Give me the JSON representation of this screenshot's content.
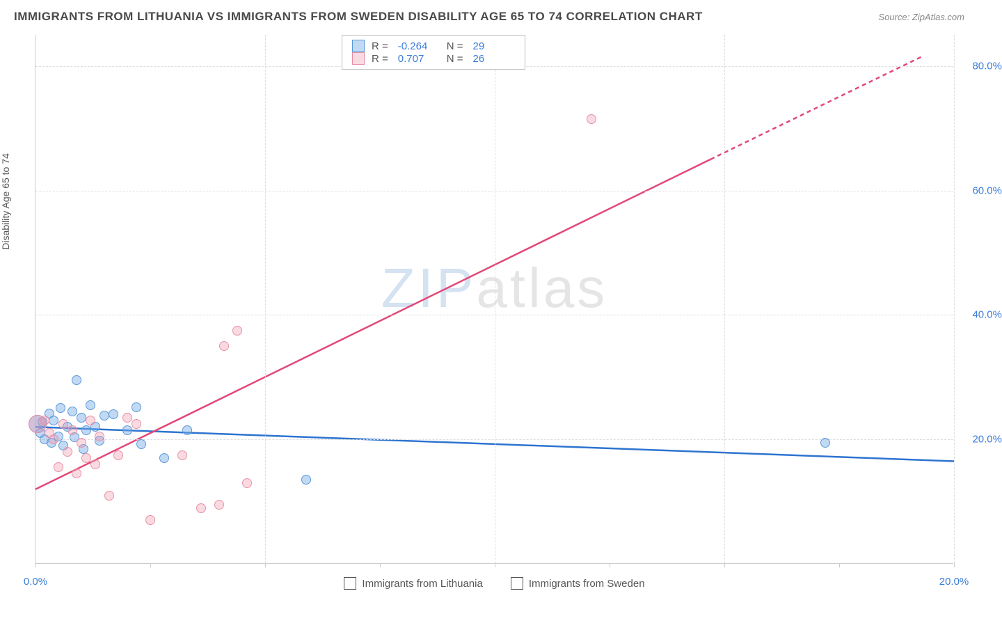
{
  "title": "IMMIGRANTS FROM LITHUANIA VS IMMIGRANTS FROM SWEDEN DISABILITY AGE 65 TO 74 CORRELATION CHART",
  "source_label": "Source:",
  "source_value": "ZipAtlas.com",
  "y_axis_label": "Disability Age 65 to 74",
  "watermark": {
    "prefix": "ZIP",
    "suffix": "atlas"
  },
  "chart": {
    "type": "scatter-with-regression",
    "xlim": [
      0,
      20
    ],
    "ylim": [
      0,
      85
    ],
    "x_ticks": [
      0,
      2.5,
      5,
      7.5,
      10,
      12.5,
      15,
      17.5,
      20
    ],
    "x_tick_labels": {
      "0": "0.0%",
      "20": "20.0%"
    },
    "y_ticks": [
      20,
      40,
      60,
      80
    ],
    "y_tick_label_suffix": "%",
    "grid_color": "#dddddd",
    "axis_color": "#cccccc",
    "background_color": "#ffffff",
    "tick_fontsize": 15,
    "tick_color": "#3b7dd8",
    "series": [
      {
        "id": "lithuania",
        "label": "Immigrants from Lithuania",
        "fill_color": "rgba(120,170,230,0.45)",
        "stroke_color": "#5a9ad8",
        "line_color": "#2d74d0",
        "line_width": 2.5,
        "R": -0.264,
        "N": 29,
        "regression": {
          "x1": 0,
          "y1": 22.0,
          "x2": 20,
          "y2": 16.5,
          "dashed": false
        },
        "points": [
          [
            0.05,
            22.5,
            26
          ],
          [
            0.1,
            21.0,
            14
          ],
          [
            0.15,
            22.8,
            14
          ],
          [
            0.2,
            20.0,
            14
          ],
          [
            0.3,
            24.2,
            14
          ],
          [
            0.35,
            19.5,
            14
          ],
          [
            0.4,
            23.0,
            14
          ],
          [
            0.5,
            20.5,
            14
          ],
          [
            0.55,
            25.0,
            14
          ],
          [
            0.6,
            19.0,
            14
          ],
          [
            0.7,
            22.0,
            14
          ],
          [
            0.8,
            24.5,
            14
          ],
          [
            0.85,
            20.3,
            14
          ],
          [
            0.9,
            29.5,
            14
          ],
          [
            1.0,
            23.5,
            14
          ],
          [
            1.05,
            18.5,
            14
          ],
          [
            1.1,
            21.5,
            14
          ],
          [
            1.2,
            25.5,
            14
          ],
          [
            1.3,
            22.0,
            14
          ],
          [
            1.4,
            19.8,
            14
          ],
          [
            1.5,
            23.8,
            14
          ],
          [
            1.7,
            24.0,
            14
          ],
          [
            2.0,
            21.5,
            14
          ],
          [
            2.2,
            25.2,
            14
          ],
          [
            2.3,
            19.2,
            14
          ],
          [
            2.8,
            17.0,
            14
          ],
          [
            3.3,
            21.5,
            14
          ],
          [
            5.9,
            13.5,
            14
          ],
          [
            17.2,
            19.5,
            14
          ]
        ]
      },
      {
        "id": "sweden",
        "label": "Immigrants from Sweden",
        "fill_color": "rgba(240,150,170,0.35)",
        "stroke_color": "#e890a8",
        "line_color": "#e24878",
        "line_width": 2.5,
        "R": 0.707,
        "N": 26,
        "regression": {
          "x1": 0,
          "y1": 12.0,
          "x2": 14.7,
          "y2": 65.0,
          "dashed": false
        },
        "regression_ext": {
          "x1": 14.7,
          "y1": 65.0,
          "x2": 19.3,
          "y2": 81.5,
          "dashed": true
        },
        "points": [
          [
            0.05,
            22.5,
            26
          ],
          [
            0.2,
            23.0,
            14
          ],
          [
            0.3,
            21.0,
            14
          ],
          [
            0.4,
            20.0,
            14
          ],
          [
            0.5,
            15.5,
            14
          ],
          [
            0.6,
            22.5,
            14
          ],
          [
            0.7,
            18.0,
            14
          ],
          [
            0.8,
            21.5,
            14
          ],
          [
            0.9,
            14.5,
            14
          ],
          [
            1.0,
            19.5,
            14
          ],
          [
            1.1,
            17.0,
            14
          ],
          [
            1.2,
            23.0,
            14
          ],
          [
            1.3,
            16.0,
            14
          ],
          [
            1.4,
            20.5,
            14
          ],
          [
            1.6,
            11.0,
            14
          ],
          [
            1.8,
            17.5,
            14
          ],
          [
            2.0,
            23.5,
            14
          ],
          [
            2.2,
            22.5,
            14
          ],
          [
            2.5,
            7.0,
            14
          ],
          [
            3.2,
            17.5,
            14
          ],
          [
            3.6,
            9.0,
            14
          ],
          [
            4.0,
            9.5,
            14
          ],
          [
            4.1,
            35.0,
            14
          ],
          [
            4.4,
            37.5,
            14
          ],
          [
            4.6,
            13.0,
            14
          ],
          [
            12.1,
            71.5,
            14
          ]
        ]
      }
    ]
  },
  "legend_top_labels": {
    "R": "R =",
    "N": "N ="
  }
}
